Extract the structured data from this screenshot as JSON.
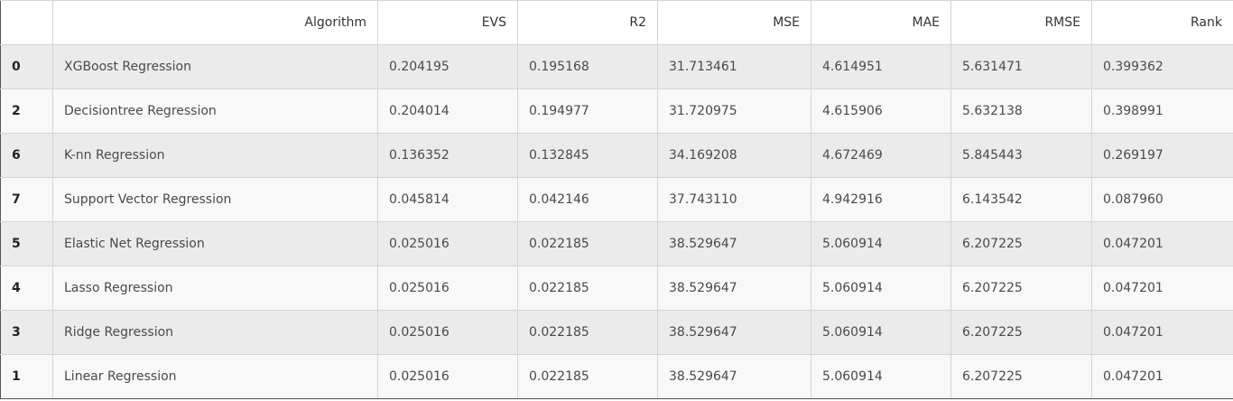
{
  "table": {
    "columns": [
      "",
      "Algorithm",
      "EVS",
      "R2",
      "MSE",
      "MAE",
      "RMSE",
      "Rank"
    ],
    "rows": [
      {
        "index": "0",
        "algorithm": "XGBoost Regression",
        "evs": "0.204195",
        "r2": "0.195168",
        "mse": "31.713461",
        "mae": "4.614951",
        "rmse": "5.631471",
        "rank": "0.399362"
      },
      {
        "index": "2",
        "algorithm": "Decisiontree Regression",
        "evs": "0.204014",
        "r2": "0.194977",
        "mse": "31.720975",
        "mae": "4.615906",
        "rmse": "5.632138",
        "rank": "0.398991"
      },
      {
        "index": "6",
        "algorithm": "K-nn Regression",
        "evs": "0.136352",
        "r2": "0.132845",
        "mse": "34.169208",
        "mae": "4.672469",
        "rmse": "5.845443",
        "rank": "0.269197"
      },
      {
        "index": "7",
        "algorithm": "Support Vector Regression",
        "evs": "0.045814",
        "r2": "0.042146",
        "mse": "37.743110",
        "mae": "4.942916",
        "rmse": "6.143542",
        "rank": "0.087960"
      },
      {
        "index": "5",
        "algorithm": "Elastic Net Regression",
        "evs": "0.025016",
        "r2": "0.022185",
        "mse": "38.529647",
        "mae": "5.060914",
        "rmse": "6.207225",
        "rank": "0.047201"
      },
      {
        "index": "4",
        "algorithm": "Lasso Regression",
        "evs": "0.025016",
        "r2": "0.022185",
        "mse": "38.529647",
        "mae": "5.060914",
        "rmse": "6.207225",
        "rank": "0.047201"
      },
      {
        "index": "3",
        "algorithm": "Ridge Regression",
        "evs": "0.025016",
        "r2": "0.022185",
        "mse": "38.529647",
        "mae": "5.060914",
        "rmse": "6.207225",
        "rank": "0.047201"
      },
      {
        "index": "1",
        "algorithm": "Linear Regression",
        "evs": "0.025016",
        "r2": "0.022185",
        "mse": "38.529647",
        "mae": "5.060914",
        "rmse": "6.207225",
        "rank": "0.047201"
      }
    ]
  }
}
